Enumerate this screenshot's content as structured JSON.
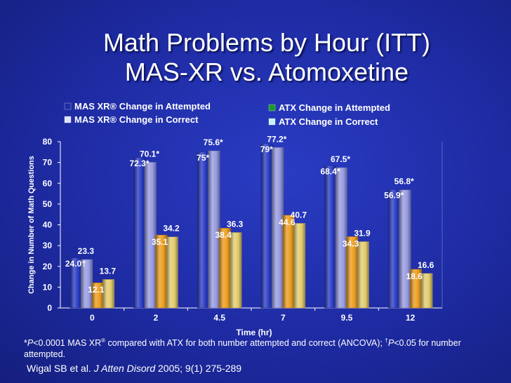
{
  "title_line1": "Math Problems by Hour (ITT)",
  "title_line2": "MAS-XR vs. Atomoxetine",
  "footnote_star": "*",
  "footnote_p1": "P",
  "footnote_text1": "<0.0001 MAS XR",
  "footnote_reg": "®",
  "footnote_text2": " compared with ATX for both number attempted and correct (ANCOVA); ",
  "footnote_dagger": "†",
  "footnote_p2": "P",
  "footnote_text3": "<0.05 for number attempted.",
  "citation_authors": "Wigal SB et al. ",
  "citation_journal": "J Atten Disord",
  "citation_rest": " 2005; 9(1) 275-289",
  "chart_data": {
    "type": "bar",
    "xlabel": "Time (hr)",
    "ylabel": "Change in Number of Math Questions",
    "ylim": [
      0,
      80
    ],
    "yticks": [
      0,
      10,
      20,
      30,
      40,
      50,
      60,
      70,
      80
    ],
    "categories": [
      "0",
      "2",
      "4.5",
      "7",
      "9.5",
      "12"
    ],
    "legend_position": "top",
    "series": [
      {
        "name": "MAS XR® Change in Attempted",
        "color": "#2b3dc8",
        "values": [
          24.0,
          72.3,
          75.0,
          79.0,
          68.4,
          56.9
        ],
        "labels": [
          "24.0†",
          "72.3*",
          "75*",
          "79*",
          "68.4*",
          "56.9*"
        ]
      },
      {
        "name": "MAS XR® Change in Correct",
        "color": "#9a9ee6",
        "values": [
          23.3,
          70.1,
          75.6,
          77.2,
          67.5,
          56.8
        ],
        "labels": [
          "23.3",
          "70.1*",
          "75.6*",
          "77.2*",
          "67.5*",
          "56.8*"
        ]
      },
      {
        "name": "ATX Change in Attempted",
        "color": "#f0a020",
        "values": [
          12.1,
          35.1,
          38.4,
          44.6,
          34.3,
          18.6
        ],
        "labels": [
          "12.1",
          "35.1",
          "38.4",
          "44.6",
          "34.3",
          "18.6"
        ]
      },
      {
        "name": "ATX Change in Correct",
        "color": "#e8d070",
        "values": [
          13.7,
          34.2,
          36.3,
          40.7,
          31.9,
          16.6
        ],
        "labels": [
          "13.7",
          "34.2",
          "36.3",
          "40.7",
          "31.9",
          "16.6"
        ]
      }
    ],
    "legend_swatches": [
      "#1e2ba3",
      "#e0e4ff",
      "#1a9a2a",
      "#c8f4f8"
    ]
  }
}
